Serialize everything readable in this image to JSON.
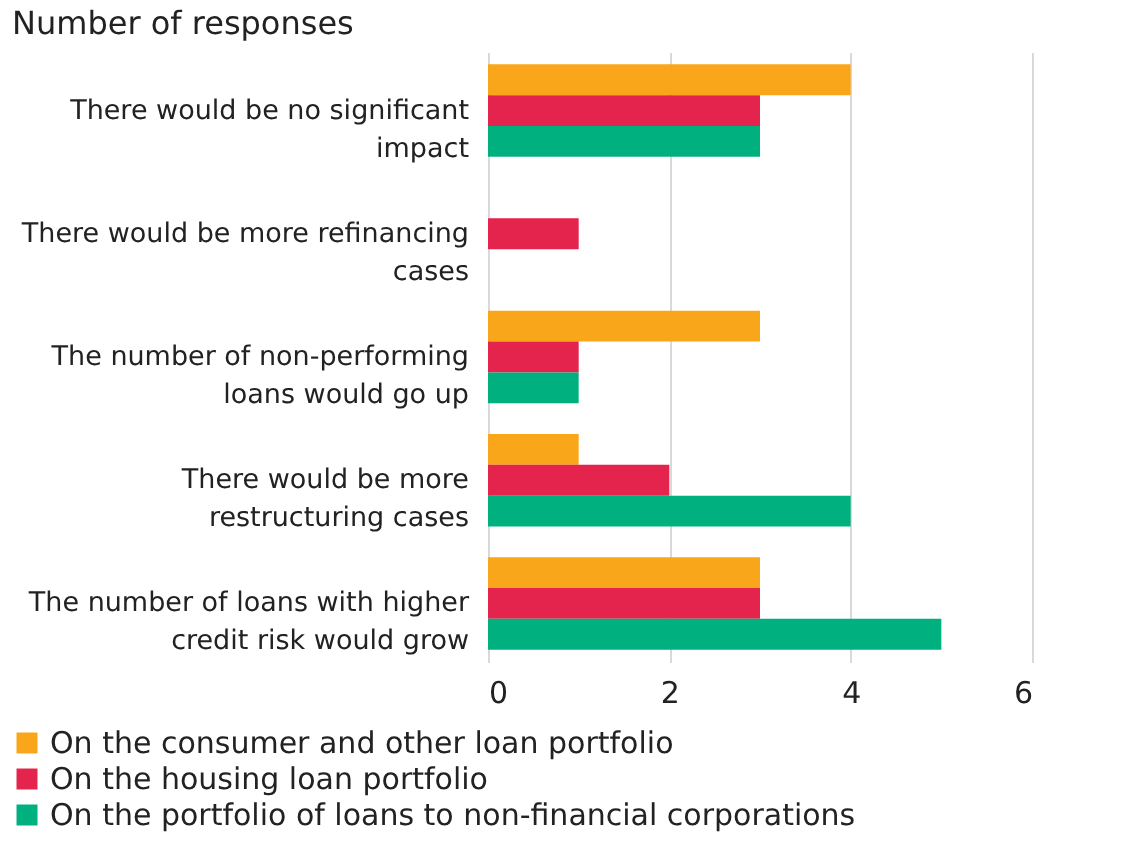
{
  "chart_data": {
    "type": "bar",
    "orientation": "horizontal",
    "title": "Number of responses",
    "categories": [
      "There would be no significant impact",
      "There would be more refinancing cases",
      "The number of non-performing loans would go up",
      "There would be more restructuring cases",
      "The number of loans with higher credit risk would grow"
    ],
    "series": [
      {
        "name": "On the consumer and other loan portfolio",
        "color": "#f9a61a",
        "values": [
          4,
          null,
          3,
          1,
          3
        ]
      },
      {
        "name": "On the housing loan portfolio",
        "color": "#e4244c",
        "values": [
          3,
          1,
          1,
          2,
          3
        ]
      },
      {
        "name": "On the portfolio of loans to non-financial corporations",
        "color": "#00b07f",
        "values": [
          3,
          null,
          1,
          4,
          5
        ]
      }
    ],
    "xlim": [
      0,
      6
    ],
    "xticks": [
      0,
      2,
      4,
      6
    ],
    "grid": "x",
    "legend": "bottom"
  }
}
